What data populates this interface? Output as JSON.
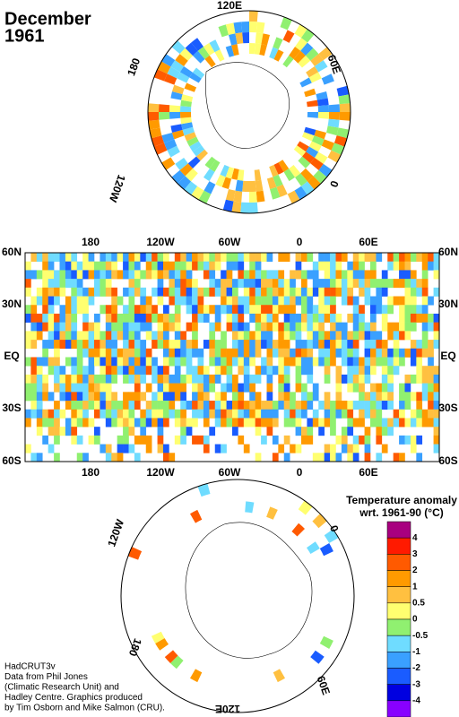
{
  "title": [
    "December",
    "1961"
  ],
  "north_polar": {
    "labels": [
      "120E",
      "60E",
      "0",
      "120W",
      "180"
    ]
  },
  "map": {
    "top_labels": [
      "180",
      "120W",
      "60W",
      "0",
      "60E"
    ],
    "bottom_labels": [
      "180",
      "120W",
      "60W",
      "0",
      "60E"
    ],
    "left_labels": [
      "60N",
      "30N",
      "EQ",
      "30S",
      "60S"
    ],
    "right_labels": [
      "60N",
      "30N",
      "EQ",
      "30S",
      "60S"
    ]
  },
  "south_polar": {
    "labels": [
      "120W",
      "0",
      "180",
      "60E",
      "120E"
    ]
  },
  "legend": {
    "title": [
      "Temperature anomaly",
      "wrt. 1961-90  (°C)"
    ],
    "labels": [
      4,
      3,
      2,
      1,
      0.5,
      0,
      -0.5,
      -1,
      -2,
      -3,
      -4
    ],
    "colors": [
      "#a8007f",
      "#ff1a00",
      "#ff5a00",
      "#ff9a00",
      "#ffc040",
      "#ffff70",
      "#90f070",
      "#6fdcff",
      "#3aa0ff",
      "#1a5cff",
      "#0000e0",
      "#8800ff"
    ]
  },
  "credits": [
    "HadCRUT3v",
    "Data from Phil Jones",
    "(Climatic Research Unit) and",
    "Hadley Centre.  Graphics produced",
    "by Tim Osborn and Mike Salmon (CRU)."
  ]
}
